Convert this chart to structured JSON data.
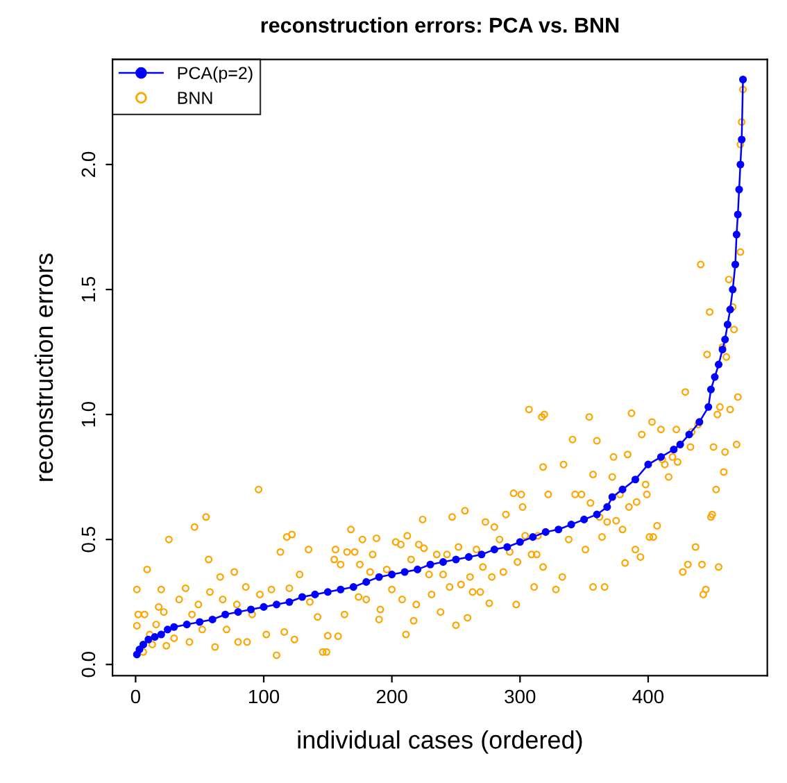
{
  "chart_data": {
    "type": "scatter",
    "title": "reconstruction errors: PCA vs. BNN",
    "xlabel": "individual cases (ordered)",
    "ylabel": "reconstruction errors",
    "xlim": [
      -18,
      493
    ],
    "ylim": [
      -0.045,
      2.42
    ],
    "xticks": [
      0,
      100,
      200,
      300,
      400
    ],
    "yticks": [
      {
        "value": 0,
        "label": "0.0"
      },
      {
        "value": 0.5,
        "label": "0.5"
      },
      {
        "value": 1,
        "label": "1.0"
      },
      {
        "value": 1.5,
        "label": "1.5"
      },
      {
        "value": 2,
        "label": "2.0"
      }
    ],
    "grid": false,
    "legend": "top left",
    "series": [
      {
        "name": "PCA(p=2)",
        "type": "line",
        "marker": "circle",
        "line_style": "solid",
        "color": "#0000ff",
        "x": [
          1,
          3,
          6,
          10,
          15,
          20,
          25,
          30,
          40,
          50,
          60,
          70,
          80,
          90,
          100,
          110,
          120,
          130,
          140,
          150,
          160,
          170,
          180,
          190,
          200,
          210,
          220,
          230,
          240,
          250,
          260,
          270,
          280,
          290,
          300,
          310,
          320,
          330,
          340,
          350,
          360,
          368,
          372,
          380,
          390,
          400,
          410,
          420,
          425,
          432,
          440,
          447,
          449,
          452,
          455,
          458,
          460,
          462,
          464,
          466,
          468,
          469,
          470,
          471,
          472,
          473,
          474
        ],
        "values": [
          0.04,
          0.06,
          0.08,
          0.1,
          0.11,
          0.12,
          0.14,
          0.15,
          0.16,
          0.17,
          0.18,
          0.2,
          0.21,
          0.22,
          0.23,
          0.24,
          0.25,
          0.27,
          0.28,
          0.29,
          0.3,
          0.31,
          0.33,
          0.35,
          0.36,
          0.37,
          0.38,
          0.4,
          0.41,
          0.42,
          0.43,
          0.44,
          0.46,
          0.47,
          0.49,
          0.51,
          0.53,
          0.54,
          0.56,
          0.58,
          0.6,
          0.63,
          0.67,
          0.7,
          0.74,
          0.8,
          0.83,
          0.86,
          0.88,
          0.92,
          0.97,
          1.03,
          1.1,
          1.15,
          1.2,
          1.26,
          1.3,
          1.36,
          1.42,
          1.5,
          1.6,
          1.72,
          1.8,
          1.9,
          2.0,
          2.1,
          2.34
        ]
      },
      {
        "name": "BNN",
        "marker": "circle",
        "color": "#ffa500",
        "x": [
          1,
          2,
          7,
          1,
          6,
          9,
          11,
          13,
          16,
          18,
          20,
          22,
          26,
          24,
          30,
          34,
          39,
          46,
          44,
          42,
          49,
          52,
          55,
          57,
          58,
          62,
          66,
          68,
          71,
          77,
          79,
          80,
          86,
          87,
          91,
          96,
          97,
          102,
          106,
          110,
          113,
          116,
          118,
          120,
          122,
          124,
          128,
          135,
          136,
          142,
          146,
          149,
          150,
          158,
          156,
          155,
          160,
          163,
          168,
          165,
          171,
          175,
          174,
          177,
          180,
          183,
          185,
          188,
          190,
          191,
          196,
          200,
          203,
          207,
          208,
          211,
          212,
          215,
          217,
          219,
          221,
          224,
          225,
          229,
          231,
          235,
          238,
          240,
          243,
          245,
          247,
          250,
          252,
          254,
          257,
          259,
          261,
          263,
          266,
          269,
          271,
          273,
          276,
          278,
          280,
          284,
          287,
          289,
          292,
          295,
          297,
          298,
          301,
          302,
          304,
          307,
          309,
          311,
          314,
          317,
          318,
          318,
          319,
          313,
          322,
          328,
          333,
          334,
          338,
          341,
          343,
          348,
          351,
          354,
          355,
          357,
          357,
          360,
          362,
          364,
          366,
          368,
          372,
          373,
          375,
          378,
          380,
          382,
          384,
          385,
          387,
          390,
          391,
          394,
          395,
          398,
          399,
          401,
          403,
          404,
          407,
          410,
          411,
          413,
          416,
          419,
          422,
          423,
          427,
          429,
          431,
          433,
          434,
          437,
          439,
          441,
          442,
          443,
          445,
          446,
          448,
          449,
          450,
          451,
          453,
          454,
          455,
          456,
          458,
          459,
          460,
          461,
          463,
          464,
          466,
          467,
          469,
          470,
          472,
          472,
          473,
          474
        ],
        "values": [
          0.3,
          0.2,
          0.2,
          0.155,
          0.05,
          0.38,
          0.12,
          0.08,
          0.16,
          0.23,
          0.3,
          0.21,
          0.5,
          0.075,
          0.105,
          0.26,
          0.305,
          0.55,
          0.2,
          0.09,
          0.24,
          0.14,
          0.59,
          0.42,
          0.29,
          0.07,
          0.35,
          0.26,
          0.14,
          0.37,
          0.24,
          0.09,
          0.31,
          0.09,
          0.2,
          0.7,
          0.28,
          0.12,
          0.3,
          0.037,
          0.45,
          0.13,
          0.51,
          0.305,
          0.52,
          0.1,
          0.36,
          0.46,
          0.25,
          0.19,
          0.05,
          0.05,
          0.115,
          0.113,
          0.46,
          0.42,
          0.4,
          0.2,
          0.54,
          0.45,
          0.45,
          0.4,
          0.27,
          0.5,
          0.26,
          0.37,
          0.44,
          0.505,
          0.18,
          0.22,
          0.38,
          0.3,
          0.49,
          0.48,
          0.26,
          0.12,
          0.515,
          0.42,
          0.175,
          0.24,
          0.48,
          0.58,
          0.465,
          0.36,
          0.28,
          0.44,
          0.21,
          0.36,
          0.44,
          0.31,
          0.59,
          0.157,
          0.47,
          0.32,
          0.615,
          0.187,
          0.35,
          0.29,
          0.46,
          0.29,
          0.39,
          0.57,
          0.245,
          0.35,
          0.55,
          0.5,
          0.37,
          0.6,
          0.45,
          0.685,
          0.24,
          0.41,
          0.68,
          0.63,
          0.515,
          1.02,
          0.44,
          0.31,
          0.515,
          0.99,
          0.39,
          0.79,
          1.0,
          0.44,
          0.68,
          0.3,
          0.35,
          0.8,
          0.5,
          0.9,
          0.68,
          0.68,
          0.46,
          0.99,
          0.646,
          0.31,
          0.76,
          0.895,
          0.59,
          0.51,
          0.31,
          0.57,
          0.75,
          0.83,
          0.575,
          0.68,
          0.54,
          0.406,
          0.84,
          0.63,
          1.005,
          0.46,
          0.65,
          0.43,
          0.92,
          0.72,
          0.68,
          0.51,
          0.97,
          0.51,
          0.555,
          0.94,
          0.82,
          0.8,
          0.75,
          0.83,
          0.94,
          0.81,
          0.37,
          1.09,
          0.4,
          0.87,
          0.93,
          0.47,
          0.96,
          1.6,
          0.4,
          0.28,
          0.3,
          1.24,
          1.41,
          0.59,
          0.6,
          0.87,
          0.7,
          1.0,
          0.39,
          1.03,
          1.27,
          0.77,
          0.85,
          1.23,
          1.54,
          1.02,
          1.43,
          1.34,
          0.88,
          1.07,
          1.65,
          2.08,
          2.17,
          2.3
        ]
      }
    ]
  }
}
